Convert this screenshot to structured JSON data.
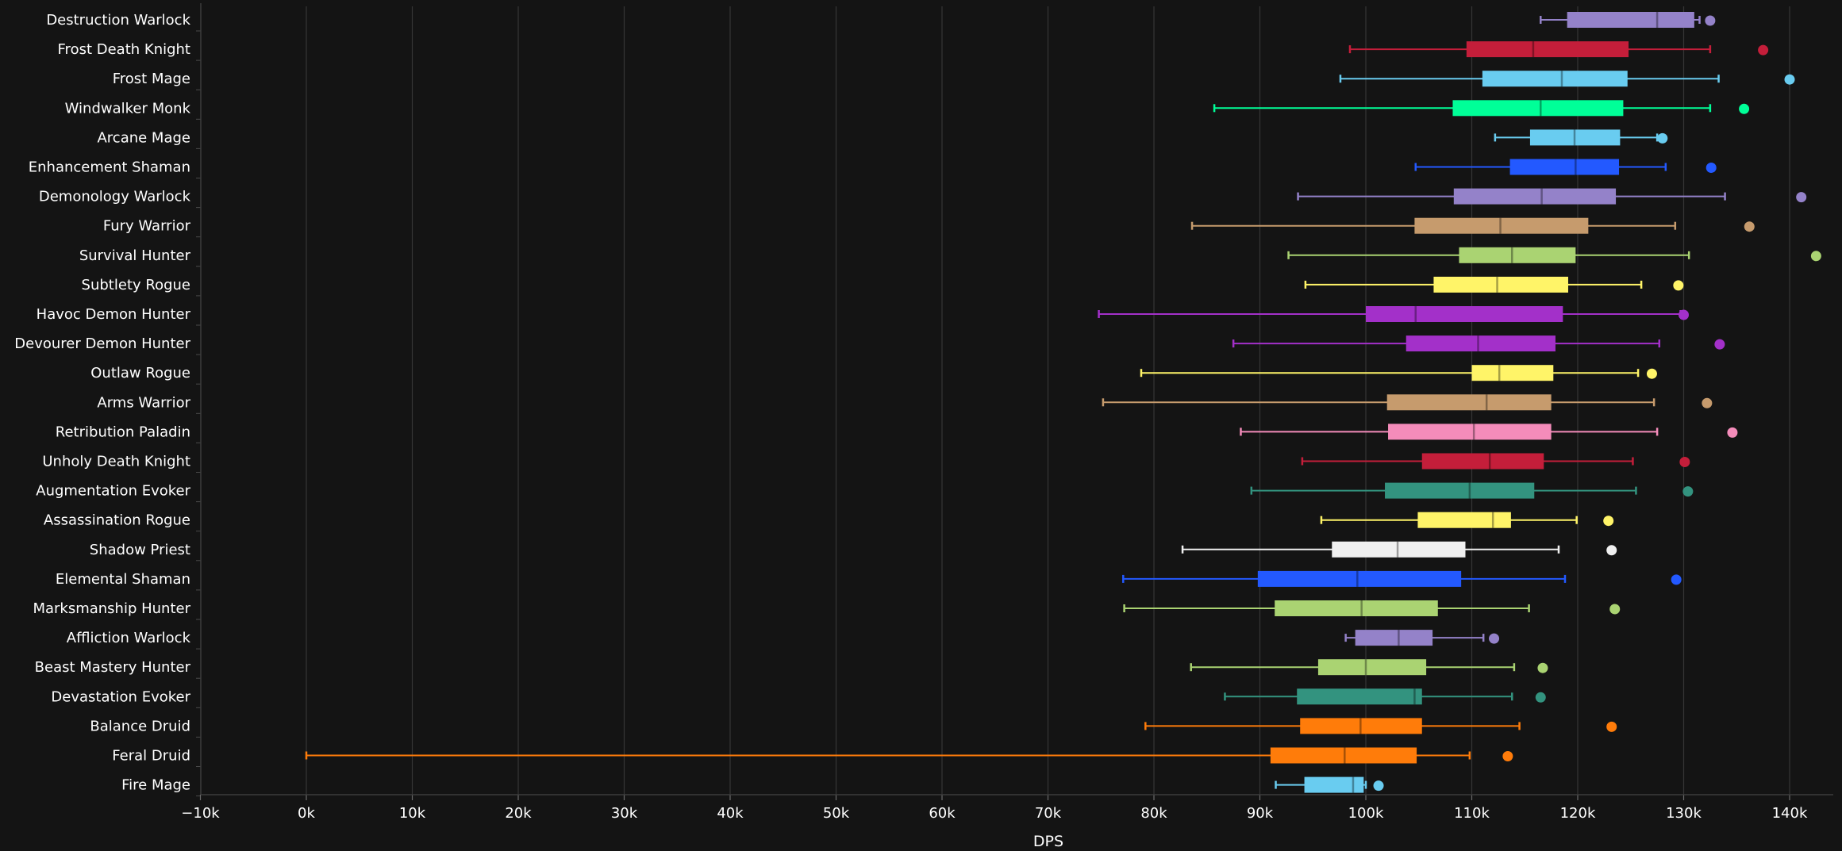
{
  "chart_data": {
    "type": "boxplot",
    "xlabel": "DPS",
    "xlim": [
      -10000,
      145000
    ],
    "x_ticks": [
      {
        "value": -10000,
        "label": "−10k"
      },
      {
        "value": 0,
        "label": "0k"
      },
      {
        "value": 10000,
        "label": "10k"
      },
      {
        "value": 20000,
        "label": "20k"
      },
      {
        "value": 30000,
        "label": "30k"
      },
      {
        "value": 40000,
        "label": "40k"
      },
      {
        "value": 50000,
        "label": "50k"
      },
      {
        "value": 60000,
        "label": "60k"
      },
      {
        "value": 70000,
        "label": "70k"
      },
      {
        "value": 80000,
        "label": "80k"
      },
      {
        "value": 90000,
        "label": "90k"
      },
      {
        "value": 100000,
        "label": "100k"
      },
      {
        "value": 110000,
        "label": "110k"
      },
      {
        "value": 120000,
        "label": "120k"
      },
      {
        "value": 130000,
        "label": "130k"
      },
      {
        "value": 140000,
        "label": "140k"
      }
    ],
    "grid": "vertical",
    "series": [
      {
        "name": "Destruction Warlock",
        "color": "#9482c9",
        "min": 116500,
        "q1": 119000,
        "median": 127500,
        "q3": 131000,
        "max": 131500,
        "outlier": 132500
      },
      {
        "name": "Frost Death Knight",
        "color": "#c41e3a",
        "min": 98500,
        "q1": 109500,
        "median": 115800,
        "q3": 124800,
        "max": 132500,
        "outlier": 137500
      },
      {
        "name": "Frost Mage",
        "color": "#69ccf0",
        "min": 97600,
        "q1": 111000,
        "median": 118500,
        "q3": 124700,
        "max": 133300,
        "outlier": 140000
      },
      {
        "name": "Windwalker Monk",
        "color": "#00ff98",
        "min": 85700,
        "q1": 108200,
        "median": 116500,
        "q3": 124300,
        "max": 132500,
        "outlier": 135700
      },
      {
        "name": "Arcane Mage",
        "color": "#69ccf0",
        "min": 112200,
        "q1": 115500,
        "median": 119700,
        "q3": 124000,
        "max": 127500,
        "outlier": 128000
      },
      {
        "name": "Enhancement Shaman",
        "color": "#2359ff",
        "min": 104700,
        "q1": 113600,
        "median": 119800,
        "q3": 123900,
        "max": 128300,
        "outlier": 132600
      },
      {
        "name": "Demonology Warlock",
        "color": "#9482c9",
        "min": 93600,
        "q1": 108300,
        "median": 116600,
        "q3": 123600,
        "max": 133900,
        "outlier": 141100
      },
      {
        "name": "Fury Warrior",
        "color": "#c69b6d",
        "min": 83600,
        "q1": 104600,
        "median": 112700,
        "q3": 121000,
        "max": 129200,
        "outlier": 136200
      },
      {
        "name": "Survival Hunter",
        "color": "#aad372",
        "min": 92700,
        "q1": 108800,
        "median": 113800,
        "q3": 119800,
        "max": 130500,
        "outlier": 142500
      },
      {
        "name": "Subtlety Rogue",
        "color": "#fff468",
        "min": 94300,
        "q1": 106400,
        "median": 112400,
        "q3": 119100,
        "max": 126000,
        "outlier": 129500
      },
      {
        "name": "Havoc Demon Hunter",
        "color": "#a330c9",
        "min": 74800,
        "q1": 100000,
        "median": 104700,
        "q3": 118600,
        "max": 129700,
        "outlier": 130000
      },
      {
        "name": "Devourer Demon Hunter",
        "color": "#a330c9",
        "min": 87500,
        "q1": 103800,
        "median": 110600,
        "q3": 117900,
        "max": 127700,
        "outlier": 133400
      },
      {
        "name": "Outlaw Rogue",
        "color": "#fff468",
        "min": 78800,
        "q1": 110000,
        "median": 112600,
        "q3": 117700,
        "max": 125700,
        "outlier": 127000
      },
      {
        "name": "Arms Warrior",
        "color": "#c69b6d",
        "min": 75200,
        "q1": 102000,
        "median": 111400,
        "q3": 117500,
        "max": 127200,
        "outlier": 132200
      },
      {
        "name": "Retribution Paladin",
        "color": "#f48cba",
        "min": 88200,
        "q1": 102100,
        "median": 110200,
        "q3": 117500,
        "max": 127500,
        "outlier": 134600
      },
      {
        "name": "Unholy Death Knight",
        "color": "#c41e3a",
        "min": 94000,
        "q1": 105300,
        "median": 111700,
        "q3": 116800,
        "max": 125200,
        "outlier": 130100
      },
      {
        "name": "Augmentation Evoker",
        "color": "#33937f",
        "min": 89200,
        "q1": 101800,
        "median": 109800,
        "q3": 115900,
        "max": 125500,
        "outlier": 130400
      },
      {
        "name": "Assassination Rogue",
        "color": "#fff468",
        "min": 95800,
        "q1": 104900,
        "median": 112000,
        "q3": 113700,
        "max": 119900,
        "outlier": 122900
      },
      {
        "name": "Shadow Priest",
        "color": "#f0f0f0",
        "min": 82700,
        "q1": 96800,
        "median": 103000,
        "q3": 109400,
        "max": 118200,
        "outlier": 123200
      },
      {
        "name": "Elemental Shaman",
        "color": "#2359ff",
        "min": 77100,
        "q1": 89800,
        "median": 99200,
        "q3": 109000,
        "max": 118800,
        "outlier": 129300
      },
      {
        "name": "Marksmanship Hunter",
        "color": "#aad372",
        "min": 77200,
        "q1": 91400,
        "median": 99600,
        "q3": 106800,
        "max": 115400,
        "outlier": 123500
      },
      {
        "name": "Affliction Warlock",
        "color": "#9482c9",
        "min": 98100,
        "q1": 99000,
        "median": 103100,
        "q3": 106300,
        "max": 111100,
        "outlier": 112100
      },
      {
        "name": "Beast Mastery Hunter",
        "color": "#aad372",
        "min": 83500,
        "q1": 95500,
        "median": 100000,
        "q3": 105700,
        "max": 114000,
        "outlier": 116700
      },
      {
        "name": "Devastation Evoker",
        "color": "#33937f",
        "min": 86700,
        "q1": 93500,
        "median": 104600,
        "q3": 105300,
        "max": 113800,
        "outlier": 116500
      },
      {
        "name": "Balance Druid",
        "color": "#ff7c0a",
        "min": 79200,
        "q1": 93800,
        "median": 99500,
        "q3": 105300,
        "max": 114500,
        "outlier": 123200
      },
      {
        "name": "Feral Druid",
        "color": "#ff7c0a",
        "min": 0,
        "q1": 91000,
        "median": 98000,
        "q3": 104800,
        "max": 109800,
        "outlier": 113400
      },
      {
        "name": "Fire Mage",
        "color": "#69ccf0",
        "min": 91500,
        "q1": 94200,
        "median": 98800,
        "q3": 99800,
        "max": 100000,
        "outlier": 101200
      }
    ]
  }
}
